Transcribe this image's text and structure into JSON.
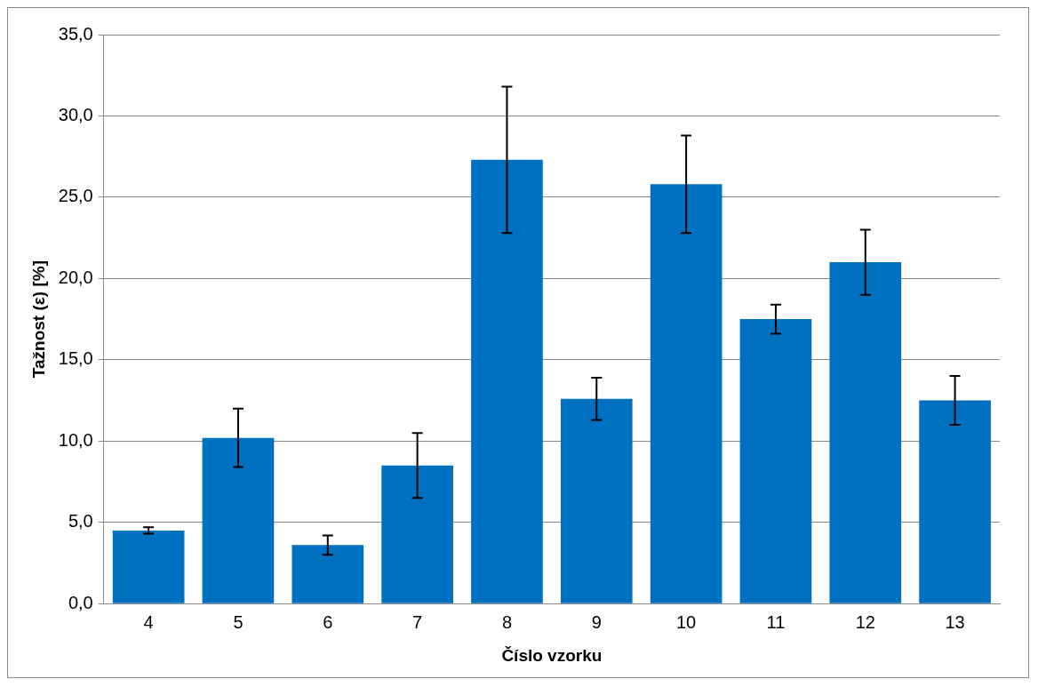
{
  "chart_data": {
    "type": "bar",
    "xlabel": "Číslo vzorku",
    "ylabel": "Tažnost (ε) [%]",
    "categories": [
      "4",
      "5",
      "6",
      "7",
      "8",
      "9",
      "10",
      "11",
      "12",
      "13"
    ],
    "values": [
      4.5,
      10.2,
      3.6,
      8.5,
      27.3,
      12.6,
      25.8,
      17.5,
      21.0,
      12.5
    ],
    "errors": [
      0.2,
      1.8,
      0.6,
      2.0,
      4.5,
      1.3,
      3.0,
      0.9,
      2.0,
      1.5
    ],
    "color": "#0070c0",
    "ylim": [
      0,
      35
    ],
    "yticks": [
      {
        "value": 0,
        "label": "0,0"
      },
      {
        "value": 5,
        "label": "5,0"
      },
      {
        "value": 10,
        "label": "10,0"
      },
      {
        "value": 15,
        "label": "15,0"
      },
      {
        "value": 20,
        "label": "20,0"
      },
      {
        "value": 25,
        "label": "25,0"
      },
      {
        "value": 30,
        "label": "30,0"
      },
      {
        "value": 35,
        "label": "35,0"
      }
    ],
    "grid": "y",
    "legend": false
  }
}
